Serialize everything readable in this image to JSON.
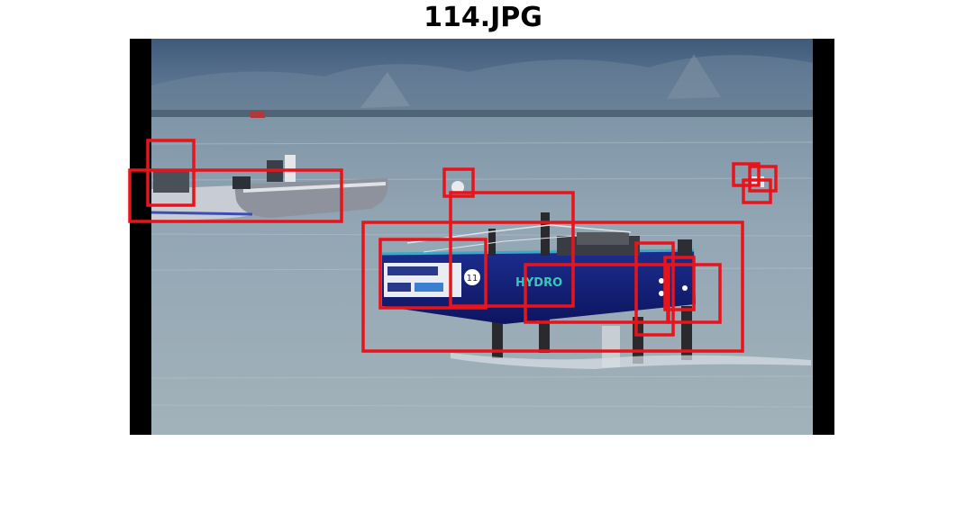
{
  "figure": {
    "title": "114.JPG"
  },
  "photo": {
    "description_label": "photo",
    "boat_hull_text": "HYDRO",
    "boat_number": "11"
  },
  "colors": {
    "box": "#e8141c",
    "sky_mountain": "#5a7590",
    "water_top": "#8ea3b3",
    "water_bottom": "#9fb0b9",
    "hull": "#15207a",
    "dinghy": "#c9ccd2",
    "letterbox": "#000000"
  },
  "detections": {
    "count": 14
  }
}
